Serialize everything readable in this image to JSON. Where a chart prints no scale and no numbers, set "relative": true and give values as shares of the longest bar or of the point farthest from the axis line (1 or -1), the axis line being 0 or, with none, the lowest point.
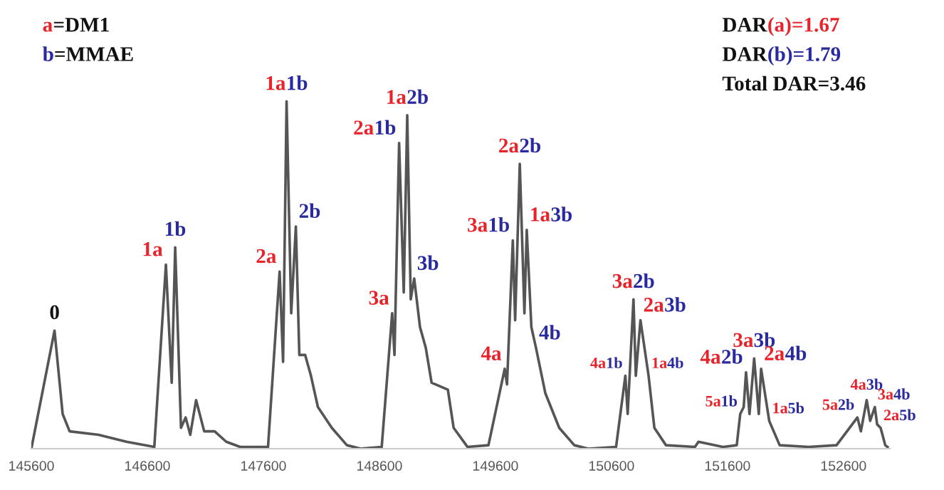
{
  "chart_data": {
    "type": "line",
    "relative": true,
    "xlim": [
      145600,
      153000
    ],
    "xticks": [
      145600,
      146600,
      147600,
      148600,
      149600,
      150600,
      151600,
      152600
    ],
    "grid": false,
    "marker": "none",
    "line_style": "solid",
    "series": [
      {
        "color": "#555555",
        "x": [
          145600,
          145800,
          145870,
          145930,
          146180,
          146420,
          146660,
          146760,
          146810,
          146840,
          146890,
          146930,
          146970,
          147020,
          147090,
          147180,
          147280,
          147400,
          147640,
          147740,
          147770,
          147800,
          147840,
          147880,
          147910,
          147960,
          148010,
          148070,
          148190,
          148320,
          148440,
          148620,
          148710,
          148730,
          148770,
          148810,
          148840,
          148870,
          148900,
          148950,
          149000,
          149050,
          149190,
          149240,
          149360,
          149540,
          149680,
          149700,
          149750,
          149770,
          149810,
          149850,
          149870,
          149910,
          149950,
          150030,
          150150,
          150280,
          150400,
          150640,
          150720,
          150740,
          150790,
          150810,
          150850,
          150920,
          150970,
          151070,
          151320,
          151350,
          151560,
          151680,
          151710,
          151740,
          151760,
          151790,
          151830,
          151870,
          151890,
          151960,
          152050,
          152300,
          152540,
          152720,
          152750,
          152800,
          152830,
          152870,
          152890,
          152920,
          152960,
          152980
        ],
        "values": [
          0,
          0.34,
          0.1,
          0.05,
          0.04,
          0.02,
          0.005,
          0.53,
          0.19,
          0.58,
          0.06,
          0.09,
          0.04,
          0.14,
          0.05,
          0.05,
          0.02,
          0.005,
          0.005,
          0.51,
          0.25,
          1.0,
          0.39,
          0.64,
          0.27,
          0.27,
          0.21,
          0.12,
          0.06,
          0.01,
          0,
          0.005,
          0.39,
          0.27,
          0.88,
          0.45,
          0.96,
          0.43,
          0.49,
          0.35,
          0.29,
          0.19,
          0.17,
          0.06,
          0.005,
          0.01,
          0.23,
          0.185,
          0.6,
          0.37,
          0.82,
          0.39,
          0.63,
          0.35,
          0.29,
          0.16,
          0.06,
          0.01,
          0,
          0.005,
          0.21,
          0.1,
          0.43,
          0.21,
          0.37,
          0.21,
          0.06,
          0.01,
          0.005,
          0.02,
          0.005,
          0.01,
          0.1,
          0.12,
          0.22,
          0.1,
          0.26,
          0.1,
          0.23,
          0.08,
          0.01,
          0.005,
          0.01,
          0.09,
          0.05,
          0.14,
          0.08,
          0.12,
          0.07,
          0.06,
          0.01,
          0.005
        ]
      }
    ],
    "annotations": [
      "a=DM1",
      "b=MMAE",
      "DAR(a)=1.67",
      "DAR(b)=1.79",
      "Total DAR=3.46",
      {
        "text": "0",
        "x": 145800,
        "y": 0.34
      },
      {
        "text": "1a",
        "x": 146760,
        "y": 0.53
      },
      {
        "text": "1b",
        "x": 146840,
        "y": 0.58
      },
      {
        "text": "2a",
        "x": 147740,
        "y": 0.51
      },
      {
        "text": "1a1b",
        "x": 147800,
        "y": 1.0
      },
      {
        "text": "2b",
        "x": 147880,
        "y": 0.64
      },
      {
        "text": "3a",
        "x": 148710,
        "y": 0.39
      },
      {
        "text": "2a1b",
        "x": 148770,
        "y": 0.88
      },
      {
        "text": "1a2b",
        "x": 148840,
        "y": 0.96
      },
      {
        "text": "3b",
        "x": 148900,
        "y": 0.49
      },
      {
        "text": "4a",
        "x": 149680,
        "y": 0.23
      },
      {
        "text": "3a1b",
        "x": 149750,
        "y": 0.6
      },
      {
        "text": "2a2b",
        "x": 149810,
        "y": 0.82
      },
      {
        "text": "1a3b",
        "x": 149870,
        "y": 0.63
      },
      {
        "text": "4b",
        "x": 149950,
        "y": 0.29
      },
      {
        "text": "4a1b",
        "x": 150720,
        "y": 0.21
      },
      {
        "text": "3a2b",
        "x": 150790,
        "y": 0.43
      },
      {
        "text": "2a3b",
        "x": 150850,
        "y": 0.37
      },
      {
        "text": "1a4b",
        "x": 150920,
        "y": 0.21
      },
      {
        "text": "5a1b",
        "x": 151710,
        "y": 0.1
      },
      {
        "text": "4a2b",
        "x": 151760,
        "y": 0.22
      },
      {
        "text": "3a3b",
        "x": 151830,
        "y": 0.26
      },
      {
        "text": "2a4b",
        "x": 151890,
        "y": 0.23
      },
      {
        "text": "1a5b",
        "x": 151960,
        "y": 0.08
      },
      {
        "text": "5a2b",
        "x": 152720,
        "y": 0.09
      },
      {
        "text": "4a3b",
        "x": 152800,
        "y": 0.14
      },
      {
        "text": "3a4b",
        "x": 152870,
        "y": 0.12
      },
      {
        "text": "2a5b",
        "x": 152920,
        "y": 0.06
      }
    ]
  }
}
